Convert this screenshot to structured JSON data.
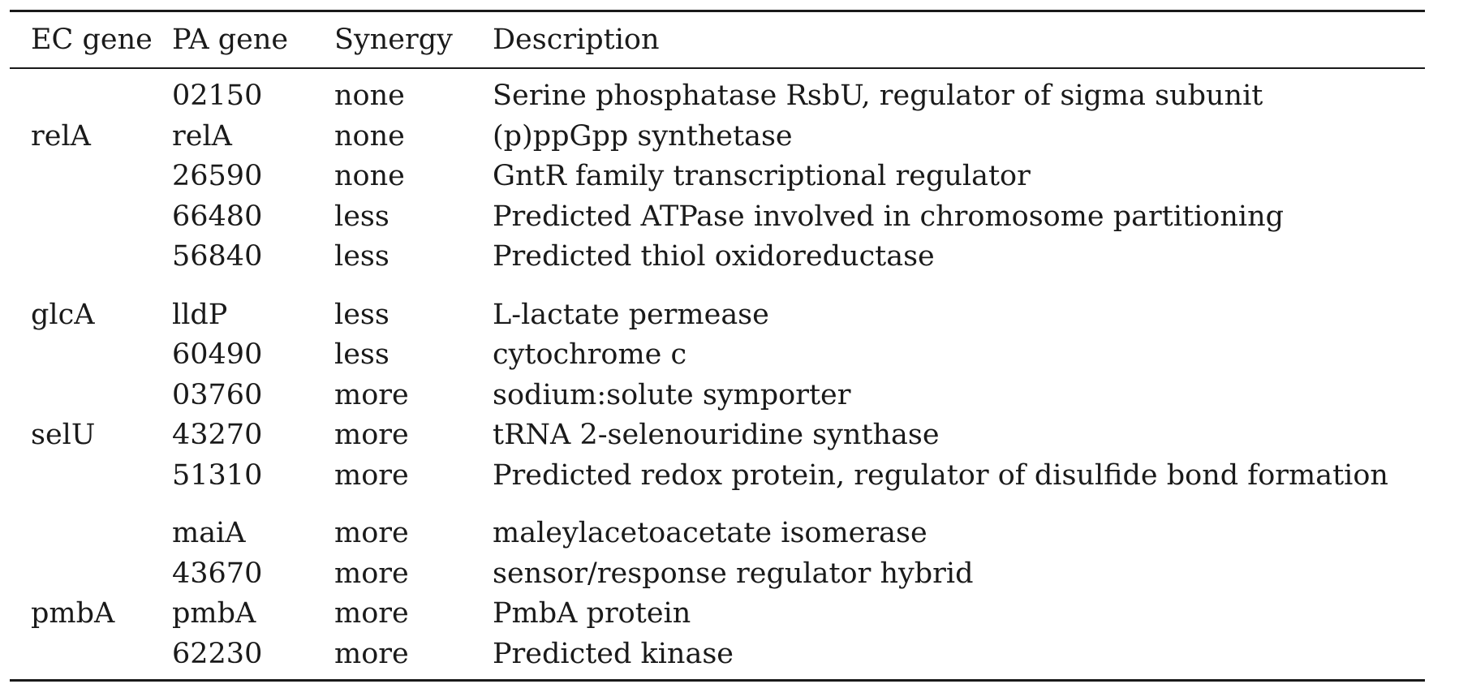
{
  "table": {
    "headers": {
      "ec_gene": "EC gene",
      "pa_gene": "PA gene",
      "synergy": "Synergy",
      "description": "Description"
    },
    "groups": [
      {
        "rows": [
          {
            "ec": "",
            "pa": "02150",
            "synergy": "none",
            "description": "Serine phosphatase RsbU, regulator of sigma subunit"
          },
          {
            "ec": "relA",
            "pa": "relA",
            "synergy": "none",
            "description": "(p)ppGpp synthetase"
          },
          {
            "ec": "",
            "pa": "26590",
            "synergy": "none",
            "description": "GntR family transcriptional regulator"
          },
          {
            "ec": "",
            "pa": "66480",
            "synergy": "less",
            "description": "Predicted ATPase involved in chromosome partitioning"
          },
          {
            "ec": "",
            "pa": "56840",
            "synergy": "less",
            "description": "Predicted thiol oxidoreductase"
          }
        ]
      },
      {
        "rows": [
          {
            "ec": "glcA",
            "pa": "lldP",
            "synergy": "less",
            "description": "L-lactate permease"
          },
          {
            "ec": "",
            "pa": "60490",
            "synergy": "less",
            "description": "cytochrome c"
          },
          {
            "ec": "",
            "pa": "03760",
            "synergy": "more",
            "description": "sodium:solute symporter"
          },
          {
            "ec": "selU",
            "pa": "43270",
            "synergy": "more",
            "description": "tRNA 2-selenouridine synthase"
          },
          {
            "ec": "",
            "pa": "51310",
            "synergy": "more",
            "description": "Predicted redox protein, regulator of disulfide bond formation"
          }
        ]
      },
      {
        "rows": [
          {
            "ec": "",
            "pa": "maiA",
            "synergy": "more",
            "description": "maleylacetoacetate isomerase"
          },
          {
            "ec": "",
            "pa": "43670",
            "synergy": "more",
            "description": "sensor/response regulator hybrid"
          },
          {
            "ec": "pmbA",
            "pa": "pmbA",
            "synergy": "more",
            "description": "PmbA protein"
          },
          {
            "ec": "",
            "pa": "62230",
            "synergy": "more",
            "description": "Predicted kinase"
          }
        ]
      }
    ]
  }
}
